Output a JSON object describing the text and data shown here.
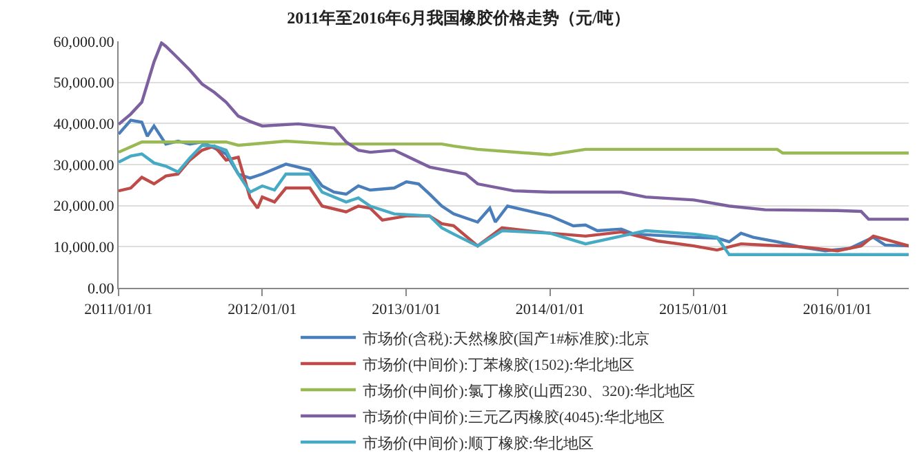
{
  "chart_data": {
    "type": "line",
    "title": "2011年至2016年6月我国橡胶价格走势（元/吨）",
    "xlim": [
      "2011-01-01",
      "2016-06-30"
    ],
    "xticks": [
      {
        "value": "2011-01-01",
        "label": "2011/01/01"
      },
      {
        "value": "2012-01-01",
        "label": "2012/01/01"
      },
      {
        "value": "2013-01-01",
        "label": "2013/01/01"
      },
      {
        "value": "2014-01-01",
        "label": "2014/01/01"
      },
      {
        "value": "2015-01-01",
        "label": "2015/01/01"
      },
      {
        "value": "2016-01-01",
        "label": "2016/01/01"
      }
    ],
    "ylim": [
      0,
      60000
    ],
    "yticks": [
      {
        "value": 0,
        "label": "0.00"
      },
      {
        "value": 10000,
        "label": "10,000.00"
      },
      {
        "value": 20000,
        "label": "20,000.00"
      },
      {
        "value": 30000,
        "label": "30,000.00"
      },
      {
        "value": 40000,
        "label": "40,000.00"
      },
      {
        "value": 50000,
        "label": "50,000.00"
      },
      {
        "value": 60000,
        "label": "60,000.00"
      }
    ],
    "grid": "y",
    "legend": "bottom",
    "marker": "none",
    "line_style": "solid",
    "series": [
      {
        "name": "市场价(含税):天然橡胶(国产1#标准胶):北京",
        "color": "#4a7ebb",
        "x": [
          "2011-01-01",
          "2011-02-01",
          "2011-03-01",
          "2011-03-15",
          "2011-04-01",
          "2011-05-01",
          "2011-06-01",
          "2011-07-01",
          "2011-08-01",
          "2011-09-01",
          "2011-10-01",
          "2011-11-01",
          "2011-12-01",
          "2012-01-01",
          "2012-03-01",
          "2012-05-01",
          "2012-06-01",
          "2012-07-01",
          "2012-08-01",
          "2012-09-01",
          "2012-10-01",
          "2012-12-01",
          "2013-01-01",
          "2013-02-01",
          "2013-03-01",
          "2013-04-01",
          "2013-05-01",
          "2013-07-01",
          "2013-08-01",
          "2013-08-15",
          "2013-09-15",
          "2014-01-01",
          "2014-03-01",
          "2014-04-01",
          "2014-05-01",
          "2014-07-01",
          "2014-08-01",
          "2015-01-01",
          "2015-03-01",
          "2015-04-01",
          "2015-05-01",
          "2015-06-01",
          "2015-08-01",
          "2015-10-01",
          "2015-12-01",
          "2016-02-01",
          "2016-04-01",
          "2016-05-01",
          "2016-06-30"
        ],
        "values": [
          37400,
          40800,
          40300,
          36900,
          39400,
          35000,
          35700,
          35000,
          35500,
          34000,
          32600,
          27700,
          26700,
          27700,
          30100,
          28700,
          24800,
          23300,
          22800,
          24800,
          23800,
          24300,
          25800,
          25300,
          22800,
          19900,
          18000,
          16000,
          19400,
          16000,
          19900,
          17500,
          15100,
          15300,
          13900,
          14300,
          13100,
          12300,
          12100,
          11200,
          13300,
          12300,
          11200,
          9900,
          9000,
          9600,
          12300,
          10400,
          10200
        ]
      },
      {
        "name": "市场价(中间价):丁苯橡胶(1502):华北地区",
        "color": "#be4b48",
        "x": [
          "2011-01-01",
          "2011-02-01",
          "2011-03-01",
          "2011-04-01",
          "2011-05-01",
          "2011-06-01",
          "2011-07-01",
          "2011-08-01",
          "2011-09-01",
          "2011-10-01",
          "2011-11-01",
          "2011-12-01",
          "2011-12-20",
          "2012-01-01",
          "2012-02-01",
          "2012-03-01",
          "2012-05-01",
          "2012-06-01",
          "2012-08-01",
          "2012-09-01",
          "2012-10-01",
          "2012-11-01",
          "2013-01-01",
          "2013-03-01",
          "2013-04-01",
          "2013-05-01",
          "2013-07-01",
          "2013-09-01",
          "2014-01-01",
          "2014-04-01",
          "2014-07-01",
          "2014-10-01",
          "2015-01-01",
          "2015-03-01",
          "2015-05-01",
          "2015-07-01",
          "2015-10-01",
          "2016-01-01",
          "2016-03-01",
          "2016-04-01",
          "2016-06-30"
        ],
        "values": [
          23600,
          24300,
          26900,
          25300,
          27200,
          27700,
          31100,
          33500,
          34500,
          31100,
          31800,
          21900,
          19400,
          22100,
          20900,
          24300,
          24300,
          19900,
          18500,
          19900,
          19400,
          16500,
          17500,
          17500,
          15600,
          15100,
          10200,
          14600,
          13300,
          12600,
          13600,
          11400,
          10200,
          9200,
          10700,
          10400,
          10000,
          9000,
          10200,
          12600,
          10200
        ]
      },
      {
        "name": "市场价(中间价):氯丁橡胶(山西230、320):华北地区",
        "color": "#98b954",
        "x": [
          "2011-01-01",
          "2011-02-01",
          "2011-03-01",
          "2011-10-01",
          "2011-11-01",
          "2012-03-01",
          "2012-07-01",
          "2013-04-01",
          "2013-05-01",
          "2013-07-01",
          "2014-01-01",
          "2014-04-01",
          "2015-08-01",
          "2015-08-15",
          "2016-06-30"
        ],
        "values": [
          33000,
          34300,
          35500,
          35500,
          34700,
          35700,
          35000,
          35000,
          34500,
          33700,
          32400,
          33700,
          33700,
          32800,
          32800
        ]
      },
      {
        "name": "市场价(中间价):三元乙丙橡胶(4045):华北地区",
        "color": "#7d60a0",
        "x": [
          "2011-01-01",
          "2011-02-01",
          "2011-03-01",
          "2011-04-01",
          "2011-04-20",
          "2011-05-01",
          "2011-06-01",
          "2011-07-01",
          "2011-08-01",
          "2011-09-01",
          "2011-10-01",
          "2011-11-01",
          "2011-12-01",
          "2012-01-01",
          "2012-04-01",
          "2012-07-01",
          "2012-08-01",
          "2012-09-01",
          "2012-10-01",
          "2012-12-01",
          "2013-01-01",
          "2013-03-01",
          "2013-06-01",
          "2013-07-01",
          "2013-10-01",
          "2014-01-01",
          "2014-07-01",
          "2014-09-01",
          "2015-01-01",
          "2015-04-01",
          "2015-07-01",
          "2016-01-01",
          "2016-03-01",
          "2016-03-20",
          "2016-06-30"
        ],
        "values": [
          39800,
          42300,
          45200,
          55000,
          59600,
          58800,
          55900,
          53000,
          49600,
          47600,
          45200,
          41800,
          40500,
          39400,
          39900,
          38900,
          35500,
          33500,
          33000,
          33500,
          32100,
          29400,
          27700,
          25300,
          23600,
          23300,
          23300,
          22100,
          21400,
          19900,
          19000,
          18800,
          18600,
          16700,
          16700
        ]
      },
      {
        "name": "市场价(中间价):顺丁橡胶:华北地区",
        "color": "#46aac5",
        "x": [
          "2011-01-01",
          "2011-02-01",
          "2011-03-01",
          "2011-04-01",
          "2011-05-01",
          "2011-06-01",
          "2011-07-01",
          "2011-08-01",
          "2011-09-01",
          "2011-10-01",
          "2011-11-01",
          "2011-12-01",
          "2012-01-01",
          "2012-02-01",
          "2012-03-01",
          "2012-05-01",
          "2012-06-01",
          "2012-08-01",
          "2012-09-01",
          "2012-10-01",
          "2012-12-01",
          "2013-03-01",
          "2013-04-01",
          "2013-05-01",
          "2013-07-01",
          "2013-09-01",
          "2014-01-01",
          "2014-04-01",
          "2014-07-01",
          "2014-09-01",
          "2015-01-01",
          "2015-03-01",
          "2015-04-01",
          "2016-06-30"
        ],
        "values": [
          30600,
          32100,
          32600,
          30400,
          29600,
          28200,
          31600,
          34700,
          34500,
          33500,
          27700,
          23300,
          24800,
          23800,
          27700,
          27700,
          23300,
          20900,
          21900,
          19900,
          18000,
          17500,
          14600,
          13100,
          10200,
          13900,
          13300,
          10700,
          12600,
          13900,
          13100,
          12300,
          8100,
          8100
        ]
      }
    ]
  }
}
